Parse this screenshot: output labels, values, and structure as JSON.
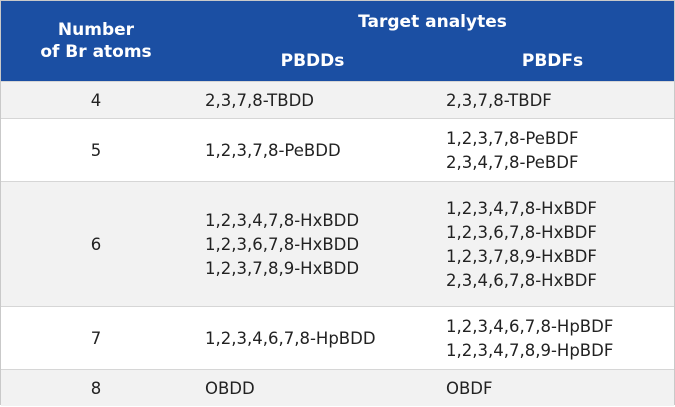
{
  "header": {
    "first_column": [
      "Number",
      "of Br atoms"
    ],
    "group_title": "Target analytes",
    "subheaders": [
      "PBDDs",
      "PBDFs"
    ]
  },
  "table": {
    "rows": [
      [
        "4",
        [
          "2,3,7,8-TBDD"
        ],
        [
          "2,3,7,8-TBDF"
        ]
      ],
      [
        "5",
        [
          "1,2,3,7,8-PeBDD"
        ],
        [
          "1,2,3,7,8-PeBDF",
          "2,3,4,7,8-PeBDF"
        ]
      ],
      [
        "6",
        [
          "1,2,3,4,7,8-HxBDD",
          "1,2,3,6,7,8-HxBDD",
          "1,2,3,7,8,9-HxBDD"
        ],
        [
          "1,2,3,4,7,8-HxBDF",
          "1,2,3,6,7,8-HxBDF",
          "1,2,3,7,8,9-HxBDF",
          "2,3,4,6,7,8-HxBDF"
        ]
      ],
      [
        "7",
        [
          "1,2,3,4,6,7,8-HpBDD"
        ],
        [
          "1,2,3,4,6,7,8-HpBDF",
          "1,2,3,4,7,8,9-HpBDF"
        ]
      ],
      [
        "8",
        [
          "OBDD"
        ],
        [
          "OBDF"
        ]
      ]
    ]
  }
}
